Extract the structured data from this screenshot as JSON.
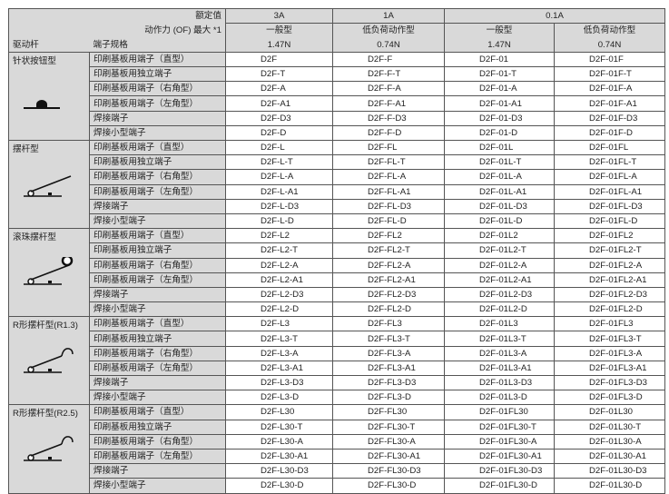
{
  "header": {
    "rated_label": "额定值",
    "force_label": "动作力 (OF) 最大 *1",
    "actuator_label": "驱动杆",
    "terminal_label": "端子规格",
    "currents": [
      "3A",
      "1A",
      "0.1A"
    ],
    "types": [
      "一般型",
      "低负荷动作型",
      "一般型",
      "低负荷动作型"
    ],
    "forces": [
      "1.47N",
      "0.74N",
      "1.47N",
      "0.74N"
    ]
  },
  "terminals": [
    "印刷基板用端子（直型）",
    "印刷基板用独立端子",
    "印刷基板用端子（右角型）",
    "印刷基板用端子（左角型）",
    "焊接端子",
    "焊接小型端子"
  ],
  "groups": [
    {
      "name": "针状按钮型",
      "icon": "pin-plunger-icon",
      "rows": [
        [
          "D2F",
          "D2F-F",
          "D2F-01",
          "D2F-01F"
        ],
        [
          "D2F-T",
          "D2F-F-T",
          "D2F-01-T",
          "D2F-01F-T"
        ],
        [
          "D2F-A",
          "D2F-F-A",
          "D2F-01-A",
          "D2F-01F-A"
        ],
        [
          "D2F-A1",
          "D2F-F-A1",
          "D2F-01-A1",
          "D2F-01F-A1"
        ],
        [
          "D2F-D3",
          "D2F-F-D3",
          "D2F-01-D3",
          "D2F-01F-D3"
        ],
        [
          "D2F-D",
          "D2F-F-D",
          "D2F-01-D",
          "D2F-01F-D"
        ]
      ]
    },
    {
      "name": "摆杆型",
      "icon": "hinge-lever-icon",
      "rows": [
        [
          "D2F-L",
          "D2F-FL",
          "D2F-01L",
          "D2F-01FL"
        ],
        [
          "D2F-L-T",
          "D2F-FL-T",
          "D2F-01L-T",
          "D2F-01FL-T"
        ],
        [
          "D2F-L-A",
          "D2F-FL-A",
          "D2F-01L-A",
          "D2F-01FL-A"
        ],
        [
          "D2F-L-A1",
          "D2F-FL-A1",
          "D2F-01L-A1",
          "D2F-01FL-A1"
        ],
        [
          "D2F-L-D3",
          "D2F-FL-D3",
          "D2F-01L-D3",
          "D2F-01FL-D3"
        ],
        [
          "D2F-L-D",
          "D2F-FL-D",
          "D2F-01L-D",
          "D2F-01FL-D"
        ]
      ]
    },
    {
      "name": "滚珠摆杆型",
      "icon": "roller-lever-icon",
      "rows": [
        [
          "D2F-L2",
          "D2F-FL2",
          "D2F-01L2",
          "D2F-01FL2"
        ],
        [
          "D2F-L2-T",
          "D2F-FL2-T",
          "D2F-01L2-T",
          "D2F-01FL2-T"
        ],
        [
          "D2F-L2-A",
          "D2F-FL2-A",
          "D2F-01L2-A",
          "D2F-01FL2-A"
        ],
        [
          "D2F-L2-A1",
          "D2F-FL2-A1",
          "D2F-01L2-A1",
          "D2F-01FL2-A1"
        ],
        [
          "D2F-L2-D3",
          "D2F-FL2-D3",
          "D2F-01L2-D3",
          "D2F-01FL2-D3"
        ],
        [
          "D2F-L2-D",
          "D2F-FL2-D",
          "D2F-01L2-D",
          "D2F-01FL2-D"
        ]
      ]
    },
    {
      "name": "R形摆杆型(R1.3)",
      "icon": "simulated-roller-lever-icon",
      "rows": [
        [
          "D2F-L3",
          "D2F-FL3",
          "D2F-01L3",
          "D2F-01FL3"
        ],
        [
          "D2F-L3-T",
          "D2F-FL3-T",
          "D2F-01L3-T",
          "D2F-01FL3-T"
        ],
        [
          "D2F-L3-A",
          "D2F-FL3-A",
          "D2F-01L3-A",
          "D2F-01FL3-A"
        ],
        [
          "D2F-L3-A1",
          "D2F-FL3-A1",
          "D2F-01L3-A1",
          "D2F-01FL3-A1"
        ],
        [
          "D2F-L3-D3",
          "D2F-FL3-D3",
          "D2F-01L3-D3",
          "D2F-01FL3-D3"
        ],
        [
          "D2F-L3-D",
          "D2F-FL3-D",
          "D2F-01L3-D",
          "D2F-01FL3-D"
        ]
      ]
    },
    {
      "name": "R形摆杆型(R2.5)",
      "icon": "simulated-roller-lever-icon",
      "rows": [
        [
          "D2F-L30",
          "D2F-FL30",
          "D2F-01FL30",
          "D2F-01L30"
        ],
        [
          "D2F-L30-T",
          "D2F-FL30-T",
          "D2F-01FL30-T",
          "D2F-01L30-T"
        ],
        [
          "D2F-L30-A",
          "D2F-FL30-A",
          "D2F-01FL30-A",
          "D2F-01L30-A"
        ],
        [
          "D2F-L30-A1",
          "D2F-FL30-A1",
          "D2F-01FL30-A1",
          "D2F-01L30-A1"
        ],
        [
          "D2F-L30-D3",
          "D2F-FL30-D3",
          "D2F-01FL30-D3",
          "D2F-01L30-D3"
        ],
        [
          "D2F-L30-D",
          "D2F-FL30-D",
          "D2F-01FL30-D",
          "D2F-01L30-D"
        ]
      ]
    }
  ],
  "colors": {
    "header_bg": "#d9d9d9",
    "border": "#555555"
  }
}
